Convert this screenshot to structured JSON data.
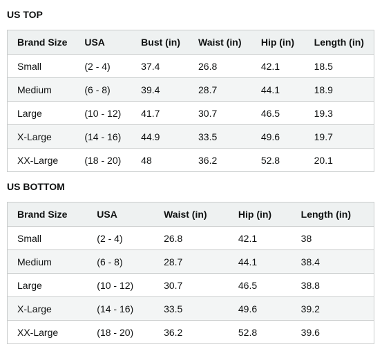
{
  "us_top": {
    "title": "US TOP",
    "headers": [
      "Brand Size",
      "USA",
      "Bust (in)",
      "Waist (in)",
      "Hip (in)",
      "Length (in)"
    ],
    "rows": [
      [
        "Small",
        "(2 - 4)",
        "37.4",
        "26.8",
        "42.1",
        "18.5"
      ],
      [
        "Medium",
        "(6 - 8)",
        "39.4",
        "28.7",
        "44.1",
        "18.9"
      ],
      [
        "Large",
        "(10 - 12)",
        "41.7",
        "30.7",
        "46.5",
        "19.3"
      ],
      [
        "X-Large",
        "(14 - 16)",
        "44.9",
        "33.5",
        "49.6",
        "19.7"
      ],
      [
        "XX-Large",
        "(18 - 20)",
        "48",
        "36.2",
        "52.8",
        "20.1"
      ]
    ]
  },
  "us_bottom": {
    "title": "US BOTTOM",
    "headers": [
      "Brand Size",
      "USA",
      "Waist (in)",
      "Hip (in)",
      "Length (in)"
    ],
    "rows": [
      [
        "Small",
        "(2 - 4)",
        "26.8",
        "42.1",
        "38"
      ],
      [
        "Medium",
        "(6 - 8)",
        "28.7",
        "44.1",
        "38.4"
      ],
      [
        "Large",
        "(10 - 12)",
        "30.7",
        "46.5",
        "38.8"
      ],
      [
        "X-Large",
        "(14 - 16)",
        "33.5",
        "49.6",
        "39.2"
      ],
      [
        "XX-Large",
        "(18 - 20)",
        "36.2",
        "52.8",
        "39.6"
      ]
    ]
  }
}
